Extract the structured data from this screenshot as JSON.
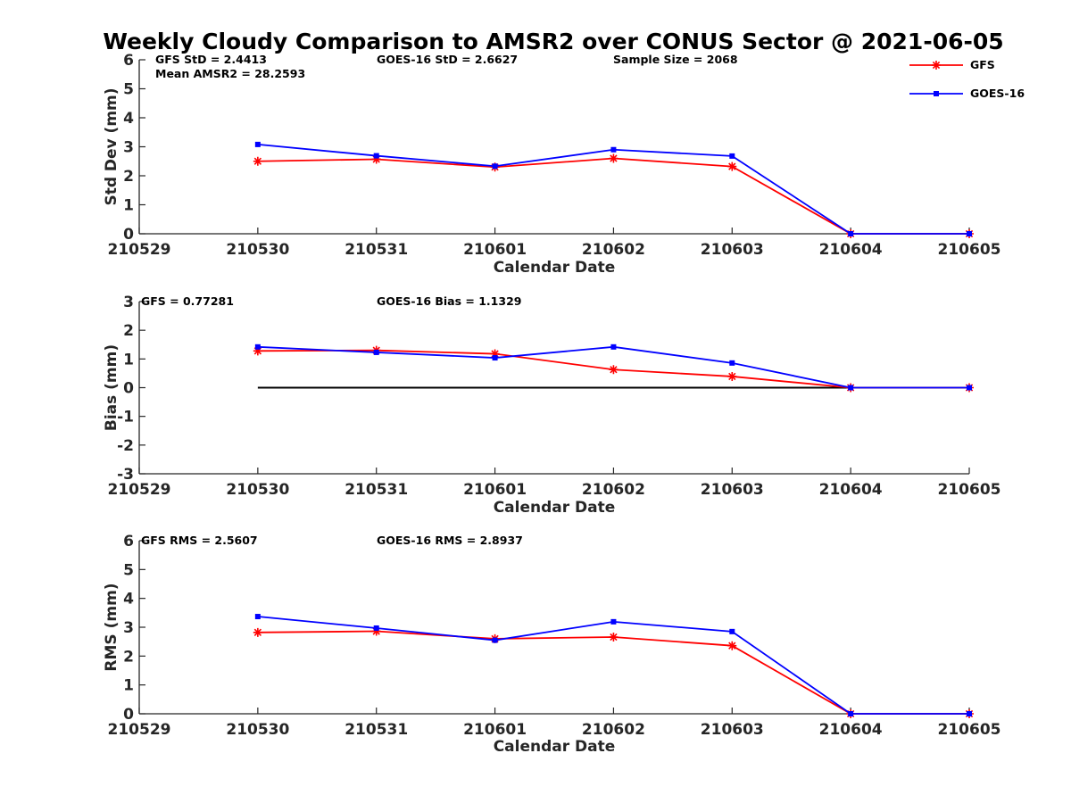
{
  "title": "Weekly Cloudy Comparison to AMSR2 over CONUS Sector @ 2021-06-05",
  "legend": {
    "placement": "top-right",
    "entries": [
      {
        "name": "GFS",
        "color": "#ff0000",
        "marker": "asterisk"
      },
      {
        "name": "GOES-16",
        "color": "#0000ff",
        "marker": "square"
      }
    ]
  },
  "chart_data": [
    {
      "type": "line",
      "xlabel": "Calendar Date",
      "ylabel": "Std Dev (mm)",
      "x": [
        "210529",
        "210530",
        "210531",
        "210601",
        "210602",
        "210603",
        "210604",
        "210605"
      ],
      "ylim": [
        0,
        6
      ],
      "yticks": [
        "0",
        "1",
        "2",
        "3",
        "4",
        "5",
        "6"
      ],
      "grid": false,
      "annotations": [
        "GFS StD = 2.4413",
        "Mean AMSR2 = 28.2593",
        "GOES-16 StD = 2.6627",
        "Sample Size = 2068"
      ],
      "series": [
        {
          "name": "GFS",
          "color": "#ff0000",
          "values": [
            null,
            2.5,
            2.57,
            2.3,
            2.6,
            2.32,
            0.0,
            0.0
          ]
        },
        {
          "name": "GOES-16",
          "color": "#0000ff",
          "values": [
            null,
            3.08,
            2.69,
            2.33,
            2.9,
            2.68,
            0.0,
            0.0
          ]
        }
      ]
    },
    {
      "type": "line",
      "xlabel": "Calendar Date",
      "ylabel": "Bias (mm)",
      "x": [
        "210529",
        "210530",
        "210531",
        "210601",
        "210602",
        "210603",
        "210604",
        "210605"
      ],
      "ylim": [
        -3,
        3
      ],
      "yticks": [
        "-3",
        "-2",
        "-1",
        "0",
        "1",
        "2",
        "3"
      ],
      "grid": false,
      "reference_line": {
        "y": 0,
        "from": "210530",
        "to": "210605"
      },
      "annotations": [
        "GFS = 0.77281",
        "GOES-16 Bias  = 1.1329"
      ],
      "series": [
        {
          "name": "GFS",
          "color": "#ff0000",
          "values": [
            null,
            1.28,
            1.3,
            1.18,
            0.63,
            0.39,
            0.0,
            0.0
          ]
        },
        {
          "name": "GOES-16",
          "color": "#0000ff",
          "values": [
            null,
            1.42,
            1.23,
            1.04,
            1.42,
            0.86,
            0.0,
            0.0
          ]
        }
      ]
    },
    {
      "type": "line",
      "xlabel": "Calendar Date",
      "ylabel": "RMS (mm)",
      "x": [
        "210529",
        "210530",
        "210531",
        "210601",
        "210602",
        "210603",
        "210604",
        "210605"
      ],
      "ylim": [
        0,
        6
      ],
      "yticks": [
        "0",
        "1",
        "2",
        "3",
        "4",
        "5",
        "6"
      ],
      "grid": false,
      "annotations": [
        "GFS RMS = 2.5607",
        "GOES-16 RMS = 2.8937"
      ],
      "series": [
        {
          "name": "GFS",
          "color": "#ff0000",
          "values": [
            null,
            2.82,
            2.86,
            2.6,
            2.66,
            2.36,
            0.0,
            0.0
          ]
        },
        {
          "name": "GOES-16",
          "color": "#0000ff",
          "values": [
            null,
            3.37,
            2.97,
            2.55,
            3.19,
            2.85,
            0.0,
            0.0
          ]
        }
      ]
    }
  ]
}
